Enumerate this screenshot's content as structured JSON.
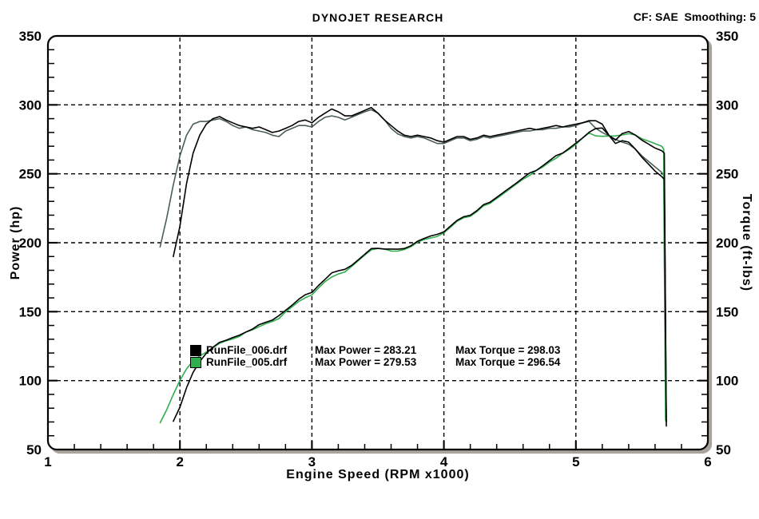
{
  "chart_data": {
    "type": "line",
    "title": "DYNOJET RESEARCH",
    "correction_label": "CF: SAE  Smoothing: 5",
    "xlabel": "Engine Speed (RPM x1000)",
    "ylabel_left": "Power (hp)",
    "ylabel_right": "Torque (ft-lbs)",
    "xlim": [
      1,
      6
    ],
    "ylim": [
      50,
      350
    ],
    "grid": "dashed",
    "legend_position": "inside-lower-middle",
    "x_ticks": {
      "major": [
        1,
        2,
        3,
        4,
        5,
        6
      ],
      "minor_step": 0.2,
      "grid_at": [
        2,
        3,
        4,
        5
      ]
    },
    "y_ticks": {
      "major": [
        350,
        300,
        250,
        200,
        150,
        100,
        50
      ],
      "minor_step": 10,
      "grid_at": [
        100,
        150,
        200,
        250,
        300
      ]
    },
    "series": [
      {
        "id": "runfile-006",
        "legend": {
          "file": "RunFile_006.drf",
          "power": "Max Power = 283.21",
          "torque": "Max Torque = 298.03"
        },
        "max_power": 283.21,
        "max_torque": 298.03,
        "power_color": "#000000",
        "torque_color": "#000000",
        "rpm": [
          1.95,
          2,
          2.05,
          2.1,
          2.15,
          2.2,
          2.25,
          2.3,
          2.35,
          2.4,
          2.45,
          2.5,
          2.55,
          2.6,
          2.65,
          2.7,
          2.75,
          2.8,
          2.85,
          2.9,
          2.95,
          3,
          3.05,
          3.1,
          3.15,
          3.2,
          3.25,
          3.3,
          3.35,
          3.4,
          3.45,
          3.5,
          3.55,
          3.6,
          3.65,
          3.7,
          3.75,
          3.8,
          3.85,
          3.9,
          3.95,
          4,
          4.05,
          4.1,
          4.15,
          4.2,
          4.25,
          4.3,
          4.35,
          4.4,
          4.45,
          4.5,
          4.55,
          4.6,
          4.65,
          4.7,
          4.75,
          4.8,
          4.85,
          4.9,
          4.95,
          5,
          5.05,
          5.1,
          5.15,
          5.2,
          5.25,
          5.3,
          5.35,
          5.4,
          5.45,
          5.5,
          5.55,
          5.6,
          5.65,
          5.67,
          5.685
        ],
        "power": [
          70.5,
          80.7,
          94.8,
          106,
          113.8,
          119.8,
          124.2,
          127.7,
          129.3,
          131.2,
          132.9,
          135.2,
          137.4,
          140.6,
          142.3,
          143.9,
          147.1,
          150.9,
          154.7,
          159,
          162.3,
          163.9,
          169,
          173.5,
          178.1,
          179.7,
          180.7,
          183.5,
          187.5,
          191.6,
          195.8,
          195.9,
          195.4,
          195.4,
          195.3,
          195.8,
          197.8,
          201.1,
          203.1,
          204.9,
          206.1,
          207.9,
          212.1,
          216.2,
          218.9,
          219.9,
          223.3,
          227.6,
          229.4,
          232.9,
          236.4,
          239.9,
          243.4,
          247,
          250.6,
          252.4,
          255.9,
          259.6,
          263.2,
          265,
          268.6,
          272.3,
          275.9,
          280.1,
          282.9,
          283.2,
          277.9,
          274.5,
          279.1,
          280.7,
          278.1,
          274.4,
          271.6,
          268.7,
          266.8,
          265,
          67
        ],
        "torque": [
          190,
          212,
          243,
          265,
          278,
          286,
          290,
          291.5,
          289,
          287,
          285,
          284,
          283,
          284,
          282,
          280,
          281,
          283,
          285,
          288,
          289,
          287,
          291,
          294,
          297,
          295,
          292,
          292,
          294,
          296,
          298,
          294,
          289,
          285,
          281,
          278,
          277,
          278,
          277,
          276,
          274,
          273,
          275,
          277,
          277,
          275,
          276,
          278,
          277,
          278,
          279,
          280,
          281,
          282,
          283,
          282,
          283,
          284,
          285,
          284,
          285,
          286,
          287,
          288.5,
          288.5,
          286,
          278,
          272,
          274,
          273,
          268,
          262,
          257,
          252,
          248,
          246,
          70
        ]
      },
      {
        "id": "runfile-005",
        "legend": {
          "file": "RunFile_005.drf",
          "power": "Max Power = 279.53",
          "torque": "Max Torque = 296.54"
        },
        "max_power": 279.53,
        "max_torque": 296.54,
        "power_color": "#2fae4e",
        "torque_color": "#4a5f52",
        "rpm": [
          1.85,
          1.9,
          1.95,
          2,
          2.05,
          2.1,
          2.15,
          2.2,
          2.25,
          2.3,
          2.35,
          2.4,
          2.45,
          2.5,
          2.55,
          2.6,
          2.65,
          2.7,
          2.75,
          2.8,
          2.85,
          2.9,
          2.95,
          3,
          3.05,
          3.1,
          3.15,
          3.2,
          3.25,
          3.3,
          3.35,
          3.4,
          3.45,
          3.5,
          3.55,
          3.6,
          3.65,
          3.7,
          3.75,
          3.8,
          3.85,
          3.9,
          3.95,
          4,
          4.05,
          4.1,
          4.15,
          4.2,
          4.25,
          4.3,
          4.35,
          4.4,
          4.45,
          4.5,
          4.55,
          4.6,
          4.65,
          4.7,
          4.75,
          4.8,
          4.85,
          4.9,
          4.95,
          5,
          5.05,
          5.1,
          5.15,
          5.2,
          5.25,
          5.3,
          5.35,
          5.4,
          5.45,
          5.5,
          5.55,
          5.6,
          5.65,
          5.665,
          5.68
        ],
        "power": [
          69.4,
          78.9,
          89.9,
          100.2,
          108.5,
          114.4,
          117.9,
          120.6,
          123.8,
          127,
          128.9,
          130.2,
          132,
          135.2,
          136.9,
          139.1,
          141.3,
          142.9,
          145,
          149.8,
          153.6,
          157.4,
          160.1,
          162.2,
          167.2,
          171.8,
          175.1,
          177.3,
          178.8,
          182.8,
          186.9,
          191,
          194.8,
          195.9,
          195.4,
          194,
          193.9,
          195.1,
          197.1,
          200.4,
          202.3,
          203.5,
          204.6,
          207.2,
          211.3,
          215.5,
          218.1,
          219.1,
          222.5,
          226.8,
          228.6,
          232.1,
          235.5,
          239.1,
          242.6,
          246.1,
          248.8,
          252.4,
          255,
          258.6,
          261.3,
          265,
          267.7,
          271.3,
          275.9,
          279.6,
          277.5,
          277.2,
          277.4,
          277.5,
          278.1,
          279.1,
          278.1,
          275.4,
          273.7,
          271.9,
          270,
          268,
          71
        ],
        "torque": [
          197,
          218,
          242,
          263,
          278,
          286,
          288,
          288,
          289,
          290,
          288,
          285,
          283,
          284,
          282,
          281,
          280,
          278,
          277,
          281,
          283,
          285,
          285,
          284,
          288,
          291,
          292,
          291,
          289,
          291,
          293,
          295,
          296.5,
          294,
          289,
          283,
          279,
          277,
          276,
          277,
          276,
          274,
          272,
          272,
          274,
          276,
          276,
          274,
          275,
          277,
          276,
          277,
          278,
          279,
          280,
          281,
          281,
          282,
          282,
          283,
          283,
          284,
          284,
          285,
          287,
          288,
          283,
          280,
          277.5,
          275,
          273,
          271.5,
          268,
          263,
          259,
          255,
          251,
          249,
          73
        ]
      }
    ]
  }
}
